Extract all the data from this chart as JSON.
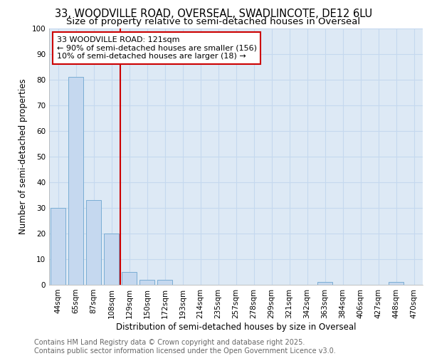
{
  "title_line1": "33, WOODVILLE ROAD, OVERSEAL, SWADLINCOTE, DE12 6LU",
  "title_line2": "Size of property relative to semi-detached houses in Overseal",
  "xlabel": "Distribution of semi-detached houses by size in Overseal",
  "ylabel": "Number of semi-detached properties",
  "categories": [
    "44sqm",
    "65sqm",
    "87sqm",
    "108sqm",
    "129sqm",
    "150sqm",
    "172sqm",
    "193sqm",
    "214sqm",
    "235sqm",
    "257sqm",
    "278sqm",
    "299sqm",
    "321sqm",
    "342sqm",
    "363sqm",
    "384sqm",
    "406sqm",
    "427sqm",
    "448sqm",
    "470sqm"
  ],
  "values": [
    30,
    81,
    33,
    20,
    5,
    2,
    2,
    0,
    0,
    0,
    0,
    0,
    0,
    0,
    0,
    1,
    0,
    0,
    0,
    1,
    0
  ],
  "bar_color": "#c5d8ef",
  "bar_edge_color": "#7aadd4",
  "vline_color": "#cc0000",
  "annotation_text": "33 WOODVILLE ROAD: 121sqm\n← 90% of semi-detached houses are smaller (156)\n10% of semi-detached houses are larger (18) →",
  "annotation_box_color": "#ffffff",
  "annotation_box_edge_color": "#cc0000",
  "ylim": [
    0,
    100
  ],
  "yticks": [
    0,
    10,
    20,
    30,
    40,
    50,
    60,
    70,
    80,
    90,
    100
  ],
  "grid_color": "#c5d8ef",
  "background_color": "#dde9f5",
  "footer_line1": "Contains HM Land Registry data © Crown copyright and database right 2025.",
  "footer_line2": "Contains public sector information licensed under the Open Government Licence v3.0.",
  "title_fontsize": 10.5,
  "subtitle_fontsize": 9.5,
  "axis_label_fontsize": 8.5,
  "tick_fontsize": 7.5,
  "annotation_fontsize": 8,
  "footer_fontsize": 7
}
